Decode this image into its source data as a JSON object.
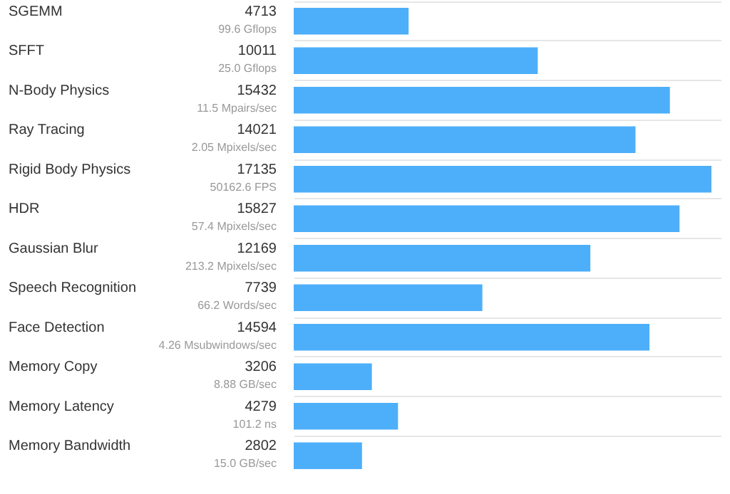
{
  "chart_data": {
    "type": "bar",
    "orientation": "horizontal",
    "data_labels": true,
    "grid": "y",
    "color": "#4daffa",
    "categories": [
      "SGEMM",
      "SFFT",
      "N-Body Physics",
      "Ray Tracing",
      "Rigid Body Physics",
      "HDR",
      "Gaussian Blur",
      "Speech Recognition",
      "Face Detection",
      "Memory Copy",
      "Memory Latency",
      "Memory Bandwidth"
    ],
    "values": [
      4713,
      10011,
      15432,
      14021,
      17135,
      15827,
      12169,
      7739,
      14594,
      3206,
      4279,
      2802
    ],
    "annotations": [
      "99.6 Gflops",
      "25.0 Gflops",
      "11.5 Mpairs/sec",
      "2.05 Mpixels/sec",
      "50162.6 FPS",
      "57.4 Mpixels/sec",
      "213.2 Mpixels/sec",
      "66.2 Words/sec",
      "4.26 Msubwindows/sec",
      "8.88 GB/sec",
      "101.2 ns",
      "15.0 GB/sec"
    ]
  }
}
